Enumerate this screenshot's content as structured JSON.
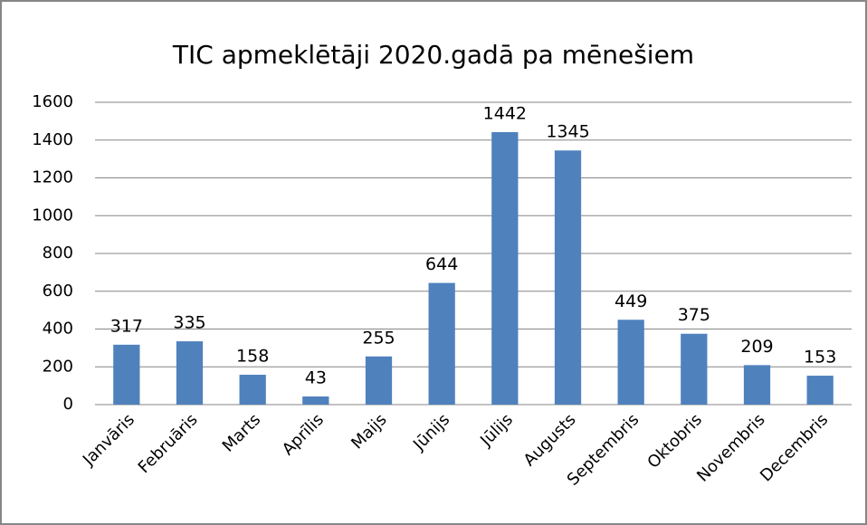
{
  "chart_data": {
    "type": "bar",
    "title": "TIC apmeklētāji 2020.gadā pa mēnešiem",
    "categories": [
      "Janvāris",
      "Februāris",
      "Marts",
      "Aprīlis",
      "Maijs",
      "Jūnijs",
      "Jūlijs",
      "Augusts",
      "Septembris",
      "Oktobris",
      "Novembris",
      "Decembris"
    ],
    "values": [
      317,
      335,
      158,
      43,
      255,
      644,
      1442,
      1345,
      449,
      375,
      209,
      153
    ],
    "color": "#4f81bd",
    "ylim": [
      0,
      1600
    ],
    "yticks": [
      0,
      200,
      400,
      600,
      800,
      1000,
      1200,
      1400,
      1600
    ],
    "grid": true
  }
}
